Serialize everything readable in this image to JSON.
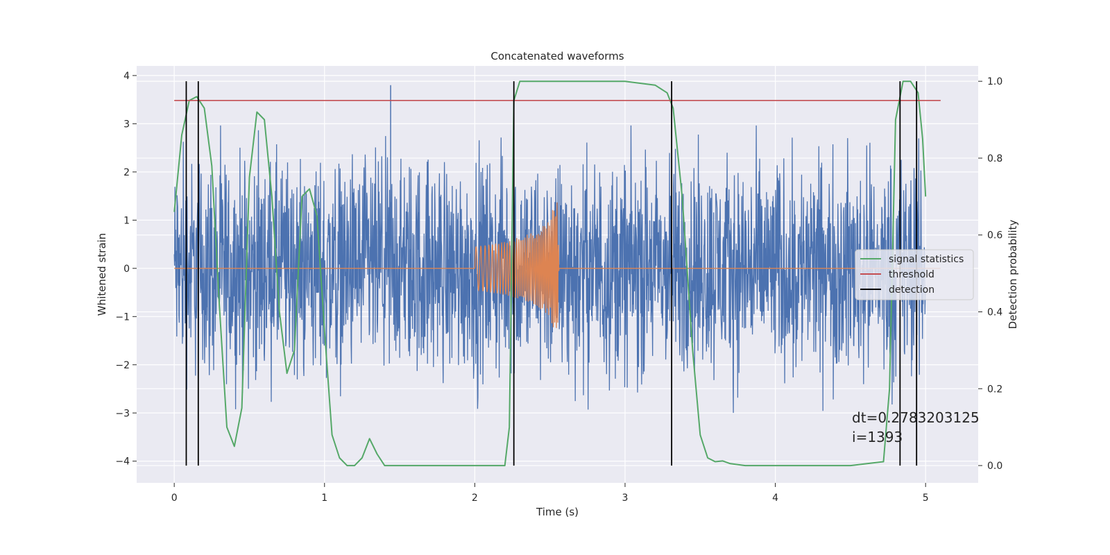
{
  "chart_data": {
    "type": "line",
    "title": "Concatenated waveforms",
    "xlabel": "Time (s)",
    "ylabel_left": "Whitened strain",
    "ylabel_right": "Detection probability",
    "xlim": [
      -0.25,
      5.35
    ],
    "ylim_left": [
      -4.45,
      4.2
    ],
    "ylim_right": [
      -0.045,
      1.04
    ],
    "x_ticks": [
      0,
      1,
      2,
      3,
      4,
      5
    ],
    "y_ticks_left": [
      -4,
      -3,
      -2,
      -1,
      0,
      1,
      2,
      3,
      4
    ],
    "y_ticks_right": [
      0.0,
      0.2,
      0.4,
      0.6,
      0.8,
      1.0
    ],
    "grid": true,
    "legend_position": "center-right",
    "colors": {
      "background": "#eaeaf2",
      "grid": "#ffffff",
      "strain": "#4c72b0",
      "template": "#dd8452",
      "signal_statistics": "#55a868",
      "threshold": "#c44e52",
      "detection": "#000000"
    },
    "series": [
      {
        "name": "",
        "axis": "left",
        "kind": "noisy-strain",
        "x_range": [
          0,
          5
        ],
        "typical_amplitude": 2.3,
        "max_value": 3.8,
        "min_value": -3.4
      },
      {
        "name": "",
        "axis": "left",
        "kind": "chirp",
        "x": [
          0,
          2.0,
          2.001,
          2.2,
          2.4,
          2.5,
          2.55,
          2.56,
          2.6,
          5.1
        ],
        "envelope": [
          0,
          0,
          0.45,
          0.55,
          0.75,
          1.0,
          1.6,
          0.05,
          0,
          0
        ]
      },
      {
        "name": "signal statistics",
        "axis": "right",
        "kind": "line",
        "x": [
          0,
          0.05,
          0.1,
          0.15,
          0.2,
          0.25,
          0.3,
          0.35,
          0.4,
          0.45,
          0.5,
          0.55,
          0.6,
          0.65,
          0.7,
          0.75,
          0.8,
          0.85,
          0.9,
          0.95,
          1.0,
          1.05,
          1.1,
          1.15,
          1.2,
          1.25,
          1.3,
          1.35,
          1.4,
          1.5,
          2.0,
          2.2,
          2.23,
          2.26,
          2.3,
          2.4,
          3.0,
          3.2,
          3.28,
          3.32,
          3.38,
          3.45,
          3.5,
          3.55,
          3.6,
          3.65,
          3.7,
          3.8,
          4.5,
          4.72,
          4.76,
          4.8,
          4.85,
          4.9,
          4.95,
          4.98,
          5.0
        ],
        "y": [
          0.66,
          0.86,
          0.95,
          0.96,
          0.93,
          0.78,
          0.42,
          0.1,
          0.05,
          0.15,
          0.75,
          0.92,
          0.9,
          0.7,
          0.4,
          0.24,
          0.3,
          0.7,
          0.72,
          0.65,
          0.35,
          0.08,
          0.02,
          0.0,
          0.0,
          0.02,
          0.07,
          0.03,
          0.0,
          0.0,
          0.0,
          0.0,
          0.1,
          0.95,
          1.0,
          1.0,
          1.0,
          0.99,
          0.97,
          0.93,
          0.7,
          0.3,
          0.08,
          0.02,
          0.01,
          0.012,
          0.005,
          0.0,
          0.0,
          0.01,
          0.2,
          0.9,
          1.0,
          1.0,
          0.97,
          0.85,
          0.7
        ]
      },
      {
        "name": "threshold",
        "axis": "right",
        "kind": "hline",
        "x": [
          0,
          5.1
        ],
        "y": 0.95
      },
      {
        "name": "detection",
        "axis": "right",
        "kind": "vlines",
        "x": [
          0.08,
          0.16,
          2.26,
          3.31,
          4.83,
          4.94
        ],
        "y_range": [
          0.0,
          1.0
        ]
      }
    ],
    "annotations": [
      {
        "text": "dt=0.2783203125",
        "x": 4.51,
        "y": -3.2
      },
      {
        "text": " i=1393",
        "x": 4.51,
        "y": -3.6
      }
    ],
    "legend": [
      "signal statistics",
      "threshold",
      "detection"
    ]
  }
}
